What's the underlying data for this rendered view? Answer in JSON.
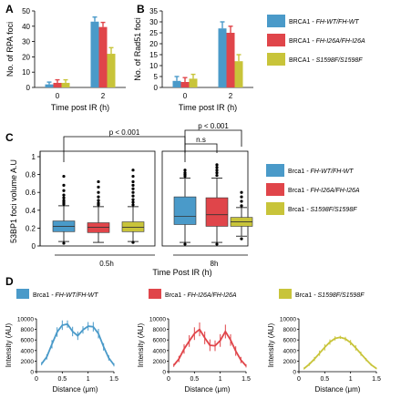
{
  "colors": {
    "wt": "#4a9ac9",
    "i26a": "#e0454a",
    "s1598f": "#c8c43a"
  },
  "panel_labels": [
    "A",
    "B",
    "C",
    "D"
  ],
  "chart_data": [
    {
      "id": "A",
      "type": "bar",
      "ylabel": "No. of RPA foci",
      "xlabel": "Time post IR (h)",
      "categories": [
        "0",
        "2"
      ],
      "ylim": [
        0,
        50
      ],
      "yticks": [
        0,
        10,
        20,
        30,
        40,
        50
      ],
      "series": [
        {
          "name_prefix": "BRCA1",
          "name_suffix": "- FH-WT/FH-WT",
          "color_key": "wt",
          "values": [
            2,
            43
          ],
          "errors": [
            1.5,
            3
          ]
        },
        {
          "name_prefix": "BRCA1",
          "name_suffix": "- FH-I26A/FH-I26A",
          "color_key": "i26a",
          "values": [
            3,
            39.5
          ],
          "errors": [
            2,
            3
          ]
        },
        {
          "name_prefix": "BRCA1",
          "name_suffix": "- S1598F/S1598F",
          "color_key": "s1598f",
          "values": [
            3,
            22
          ],
          "errors": [
            2,
            4
          ]
        }
      ]
    },
    {
      "id": "B",
      "type": "bar",
      "ylabel": "No. of Rad51 foci",
      "xlabel": "Time post IR (h)",
      "categories": [
        "0",
        "2"
      ],
      "ylim": [
        0,
        35
      ],
      "yticks": [
        0,
        5,
        10,
        15,
        20,
        25,
        30,
        35
      ],
      "series": [
        {
          "color_key": "wt",
          "values": [
            3,
            27
          ],
          "errors": [
            2,
            3
          ]
        },
        {
          "color_key": "i26a",
          "values": [
            2.5,
            25
          ],
          "errors": [
            2,
            3
          ]
        },
        {
          "color_key": "s1598f",
          "values": [
            4,
            12
          ],
          "errors": [
            2,
            3
          ]
        }
      ]
    },
    {
      "id": "C",
      "type": "box",
      "ylabel": "53BP1 foci volume A.U",
      "xlabel": "Time Post IR (h)",
      "groups": [
        "0.5h",
        "8h"
      ],
      "ylim": [
        0,
        1
      ],
      "yticks": [
        0,
        0.2,
        0.4,
        0.6,
        0.8,
        1
      ],
      "boxes": [
        {
          "group": 0,
          "color_key": "wt",
          "whisker_low": 0.05,
          "q1": 0.16,
          "median": 0.22,
          "q3": 0.28,
          "whisker_high": 0.45,
          "outliers": [
            0.47,
            0.49,
            0.51,
            0.54,
            0.57,
            0.62,
            0.68,
            0.78,
            0.03
          ]
        },
        {
          "group": 0,
          "color_key": "i26a",
          "whisker_low": 0.04,
          "q1": 0.15,
          "median": 0.21,
          "q3": 0.26,
          "whisker_high": 0.44,
          "outliers": [
            0.46,
            0.48,
            0.51,
            0.55,
            0.6,
            0.66,
            0.72
          ]
        },
        {
          "group": 0,
          "color_key": "s1598f",
          "whisker_low": 0.05,
          "q1": 0.16,
          "median": 0.21,
          "q3": 0.27,
          "whisker_high": 0.44,
          "outliers": [
            0.46,
            0.49,
            0.52,
            0.56,
            0.6,
            0.64,
            0.68,
            0.72,
            0.78,
            0.85,
            0.04
          ]
        },
        {
          "group": 1,
          "color_key": "wt",
          "whisker_low": 0.04,
          "q1": 0.24,
          "median": 0.33,
          "q3": 0.55,
          "whisker_high": 0.76,
          "outliers": [
            0.78,
            0.8,
            0.82,
            0.85,
            0.02
          ]
        },
        {
          "group": 1,
          "color_key": "i26a",
          "whisker_low": 0.04,
          "q1": 0.22,
          "median": 0.35,
          "q3": 0.54,
          "whisker_high": 0.76,
          "outliers": [
            0.79,
            0.82,
            0.85,
            0.88,
            0.91,
            0.02
          ]
        },
        {
          "group": 1,
          "color_key": "s1598f",
          "whisker_low": 0.11,
          "q1": 0.22,
          "median": 0.27,
          "q3": 0.32,
          "whisker_high": 0.43,
          "outliers": [
            0.45,
            0.5,
            0.55,
            0.6,
            0.08
          ]
        }
      ],
      "annotations": [
        {
          "text": "p < 0.001",
          "from_box": 0,
          "to_box": 3,
          "level": 0.99
        },
        {
          "text": "p < 0.001",
          "from_box": 3,
          "to_box": 5,
          "level": 1.04
        },
        {
          "text": "n.s",
          "from_box": 3,
          "to_box": 4,
          "level": 0.96
        }
      ],
      "legend": [
        {
          "prefix": "Brca1",
          "suffix": "- FH-WT/FH-WT",
          "color_key": "wt"
        },
        {
          "prefix": "Brca1",
          "suffix": "- FH-I26A/FH-I26A",
          "color_key": "i26a"
        },
        {
          "prefix": "Brca1",
          "suffix": "- S1598F/S1598F",
          "color_key": "s1598f"
        }
      ]
    },
    {
      "id": "D",
      "type": "line",
      "ylabel": "Intensity (AU)",
      "xlabel": "Distance (μm)",
      "xlim": [
        0,
        1.5
      ],
      "xticks": [
        0,
        0.5,
        1,
        1.5
      ],
      "ylim": [
        0,
        10000
      ],
      "yticks": [
        0,
        2000,
        4000,
        6000,
        8000,
        10000
      ],
      "panels": [
        {
          "legend_prefix": "Brca1",
          "legend_suffix": "- FH-WT/FH-WT",
          "color_key": "wt",
          "x": [
            0.1,
            0.2,
            0.3,
            0.4,
            0.5,
            0.6,
            0.7,
            0.8,
            0.9,
            1.0,
            1.1,
            1.2,
            1.3,
            1.4,
            1.5
          ],
          "y": [
            1500,
            2800,
            5200,
            7500,
            8800,
            9000,
            7600,
            6800,
            7900,
            8600,
            8500,
            7200,
            4700,
            2600,
            1300
          ],
          "err": [
            300,
            500,
            800,
            900,
            900,
            700,
            900,
            800,
            700,
            800,
            900,
            900,
            700,
            500,
            300
          ]
        },
        {
          "legend_prefix": "Brca1",
          "legend_suffix": "- FH-I26A/FH-I26A",
          "color_key": "i26a",
          "x": [
            0.1,
            0.2,
            0.3,
            0.4,
            0.5,
            0.6,
            0.7,
            0.8,
            0.9,
            1.0,
            1.1,
            1.2,
            1.3,
            1.4,
            1.5
          ],
          "y": [
            1200,
            2400,
            4300,
            5800,
            7200,
            8000,
            6400,
            5000,
            4900,
            5900,
            7600,
            6000,
            3900,
            2200,
            1100
          ],
          "err": [
            300,
            600,
            900,
            1100,
            1200,
            1300,
            1200,
            1100,
            1000,
            1200,
            1300,
            1100,
            900,
            600,
            300
          ]
        },
        {
          "legend_prefix": "Brca1",
          "legend_suffix": "- S1598F/S1598F",
          "color_key": "s1598f",
          "x": [
            0.1,
            0.2,
            0.3,
            0.4,
            0.5,
            0.6,
            0.7,
            0.8,
            0.9,
            1.0,
            1.1,
            1.2,
            1.3,
            1.4,
            1.5
          ],
          "y": [
            600,
            1400,
            2400,
            3500,
            4600,
            5600,
            6300,
            6500,
            6200,
            5500,
            4500,
            3400,
            2300,
            1300,
            600
          ],
          "err": [
            200,
            300,
            400,
            500,
            600,
            500,
            400,
            300,
            400,
            500,
            500,
            400,
            300,
            200,
            150
          ]
        }
      ]
    }
  ]
}
